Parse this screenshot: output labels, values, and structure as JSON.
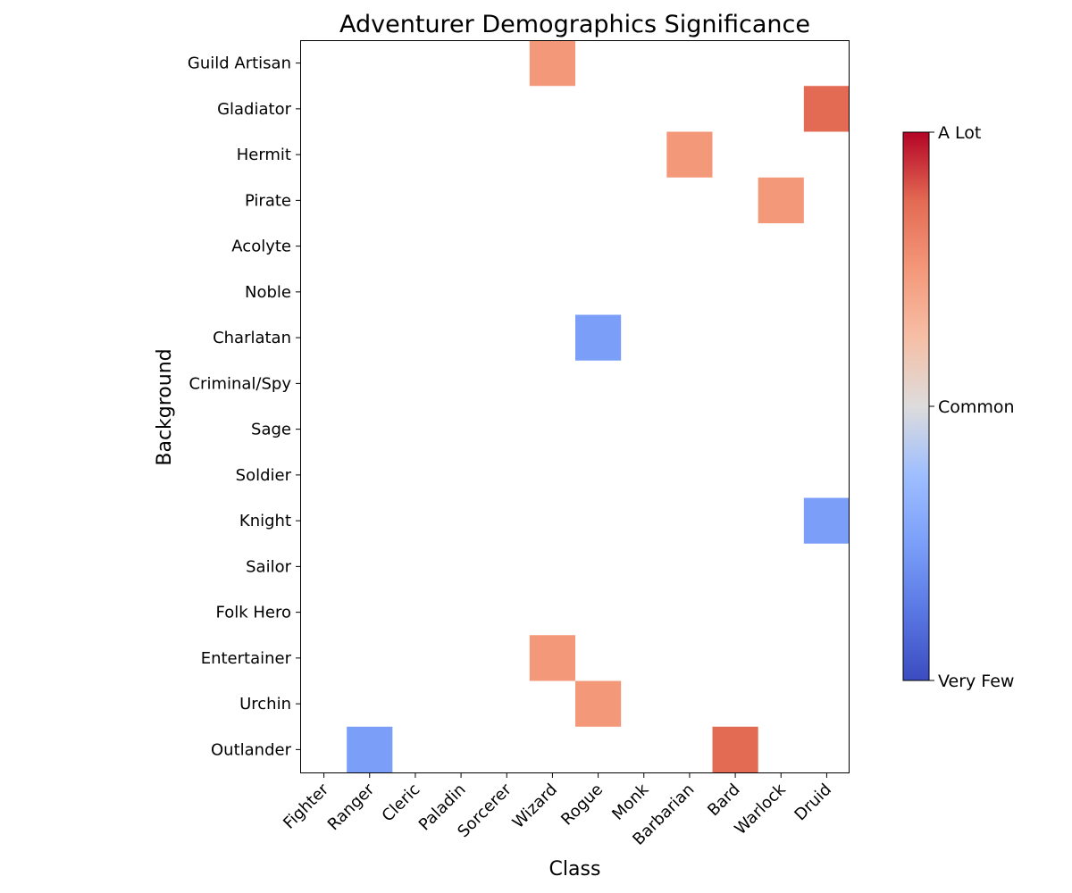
{
  "chart_data": {
    "type": "heatmap",
    "title": "Adventurer Demographics Significance",
    "xlabel": "Class",
    "ylabel": "Background",
    "x_categories": [
      "Fighter",
      "Ranger",
      "Cleric",
      "Paladin",
      "Sorcerer",
      "Wizard",
      "Rogue",
      "Monk",
      "Barbarian",
      "Bard",
      "Warlock",
      "Druid"
    ],
    "y_categories": [
      "Guild Artisan",
      "Gladiator",
      "Hermit",
      "Pirate",
      "Acolyte",
      "Noble",
      "Charlatan",
      "Criminal/Spy",
      "Sage",
      "Soldier",
      "Knight",
      "Sailor",
      "Folk Hero",
      "Entertainer",
      "Urchin",
      "Outlander"
    ],
    "colormap": "coolwarm",
    "color_range": [
      -1,
      1
    ],
    "colorbar": {
      "ticks": [
        {
          "value": 1,
          "label": "A Lot"
        },
        {
          "value": 0,
          "label": "Common"
        },
        {
          "value": -1,
          "label": "Very Few"
        }
      ]
    },
    "cells": [
      {
        "x": "Wizard",
        "y": "Guild Artisan",
        "value": 0.5
      },
      {
        "x": "Druid",
        "y": "Gladiator",
        "value": 0.75
      },
      {
        "x": "Barbarian",
        "y": "Hermit",
        "value": 0.5
      },
      {
        "x": "Warlock",
        "y": "Pirate",
        "value": 0.5
      },
      {
        "x": "Rogue",
        "y": "Charlatan",
        "value": -0.5
      },
      {
        "x": "Druid",
        "y": "Knight",
        "value": -0.5
      },
      {
        "x": "Wizard",
        "y": "Entertainer",
        "value": 0.5
      },
      {
        "x": "Rogue",
        "y": "Urchin",
        "value": 0.5
      },
      {
        "x": "Ranger",
        "y": "Outlander",
        "value": -0.5
      },
      {
        "x": "Bard",
        "y": "Outlander",
        "value": 0.75
      }
    ],
    "empty_cells": "blank",
    "grid": false,
    "legend": "colorbar-right"
  }
}
